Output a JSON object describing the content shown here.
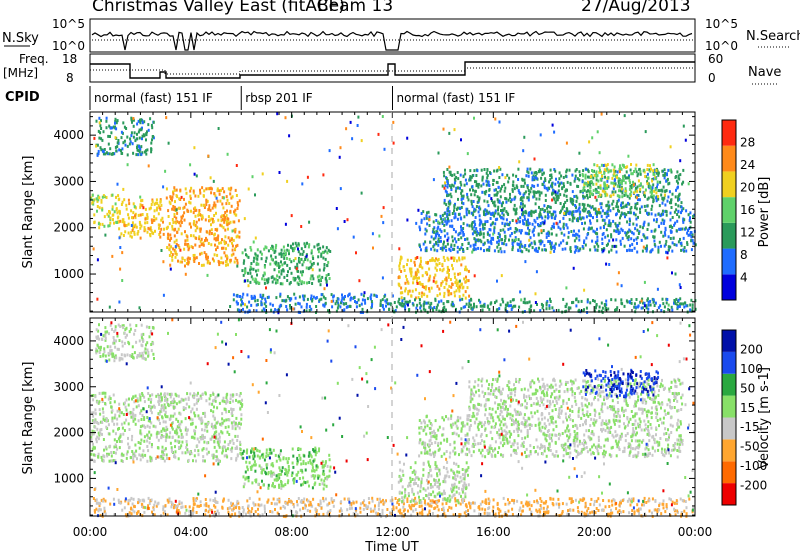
{
  "header": {
    "title": "Christmas Valley East (fitACF)",
    "beam": "Beam 13",
    "date": "27/Aug/2013"
  },
  "top_panels": {
    "nsky_label": "N.Sky",
    "nsky_ticks": [
      "10^5",
      "10^0"
    ],
    "nsearch_label": "N.Search",
    "nsearch_ticks": [
      "10^5",
      "10^0"
    ],
    "freq_label": "Freq.",
    "freq_unit": "[MHz]",
    "freq_ticks": [
      "18",
      "8"
    ],
    "nave_label": "Nave",
    "nave_ticks": [
      "60",
      "0"
    ],
    "cpid_label": "CPID",
    "cpid_segments": [
      {
        "name": "normal (fast) 151 IF",
        "start_h": 0,
        "end_h": 6
      },
      {
        "name": "rbsp 201 IF",
        "start_h": 6,
        "end_h": 12
      },
      {
        "name": "normal (fast) 151 IF",
        "start_h": 12,
        "end_h": 24
      }
    ]
  },
  "chart_data": [
    {
      "type": "heatmap",
      "panel": "power",
      "ylabel": "Slant Range [km]",
      "yticks": [
        1000,
        2000,
        3000,
        4000
      ],
      "ylim": [
        180,
        4500
      ],
      "xlim": [
        0,
        24
      ],
      "colorbar_label": "Power [dB]",
      "colorbar_ticks": [
        "4",
        "8",
        "12",
        "16",
        "20",
        "24",
        "28"
      ],
      "colorbar_range": [
        0,
        30
      ],
      "colors": [
        "#0000dd",
        "#1f6cff",
        "#2a9a5a",
        "#5fd16a",
        "#f0d020",
        "#ff8a1a",
        "#ff2a10"
      ],
      "regions": [
        {
          "t0": 0.0,
          "t1": 1.1,
          "r0": 2000,
          "r1": 2750,
          "v": 18
        },
        {
          "t0": 1.1,
          "t1": 2.9,
          "r0": 1800,
          "r1": 2650,
          "v": 20
        },
        {
          "t0": 3.0,
          "t1": 5.9,
          "r0": 1200,
          "r1": 2900,
          "v": 22
        },
        {
          "t0": 0.2,
          "t1": 2.5,
          "r0": 3600,
          "r1": 4400,
          "v": 10
        },
        {
          "t0": 6.0,
          "t1": 9.5,
          "r0": 800,
          "r1": 1700,
          "v": 12
        },
        {
          "t0": 5.5,
          "t1": 12.0,
          "r0": 200,
          "r1": 600,
          "v": 8
        },
        {
          "t0": 12.2,
          "t1": 15.0,
          "r0": 500,
          "r1": 1400,
          "v": 20
        },
        {
          "t0": 12.0,
          "t1": 24.0,
          "r0": 200,
          "r1": 500,
          "v": 10
        },
        {
          "t0": 13.0,
          "t1": 24.0,
          "r0": 1500,
          "r1": 2400,
          "v": 8
        },
        {
          "t0": 14.0,
          "t1": 23.5,
          "r0": 2300,
          "r1": 3300,
          "v": 10
        },
        {
          "t0": 19.5,
          "t1": 22.5,
          "r0": 2700,
          "r1": 3400,
          "v": 16
        }
      ]
    },
    {
      "type": "heatmap",
      "panel": "velocity",
      "ylabel": "Slant Range [km]",
      "yticks": [
        1000,
        2000,
        3000,
        4000
      ],
      "ylim": [
        180,
        4500
      ],
      "xlim": [
        0,
        24
      ],
      "xlabel": "Time UT",
      "xticks": [
        "00:00",
        "04:00",
        "08:00",
        "12:00",
        "16:00",
        "20:00",
        "00:00"
      ],
      "colorbar_label": "Velocity [m s-1]",
      "colorbar_ticks": [
        "-200",
        "-100",
        "-50",
        "-15",
        "15",
        "50",
        "100",
        "200"
      ],
      "colorbar_range": [
        -250,
        250
      ],
      "colors": [
        "#ee0000",
        "#ff6a00",
        "#ffa630",
        "#c8c8c8",
        "#88e068",
        "#2aa840",
        "#1a4aee",
        "#0010a8"
      ],
      "regions": [
        {
          "t0": 0.0,
          "t1": 6.0,
          "r0": 1400,
          "r1": 2900,
          "v": 0
        },
        {
          "t0": 0.2,
          "t1": 2.5,
          "r0": 3600,
          "r1": 4400,
          "v": 0
        },
        {
          "t0": 6.0,
          "t1": 9.5,
          "r0": 800,
          "r1": 1700,
          "v": 40
        },
        {
          "t0": 0.0,
          "t1": 12.0,
          "r0": 200,
          "r1": 600,
          "v": -60
        },
        {
          "t0": 12.0,
          "t1": 24.0,
          "r0": 200,
          "r1": 600,
          "v": -80
        },
        {
          "t0": 12.2,
          "t1": 15.0,
          "r0": 500,
          "r1": 1400,
          "v": 0
        },
        {
          "t0": 13.0,
          "t1": 23.5,
          "r0": 1500,
          "r1": 2400,
          "v": 0
        },
        {
          "t0": 15.0,
          "t1": 23.5,
          "r0": 2400,
          "r1": 3200,
          "v": 0
        },
        {
          "t0": 19.5,
          "t1": 22.5,
          "r0": 2800,
          "r1": 3400,
          "v": 180
        }
      ]
    }
  ]
}
